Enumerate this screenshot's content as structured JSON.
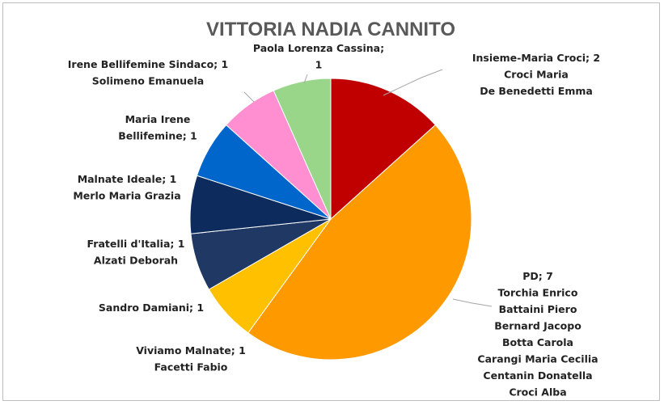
{
  "chart_data": {
    "type": "pie",
    "title": "VITTORIA NADIA CANNITO",
    "unit_note": "",
    "slices": [
      {
        "label": "Insieme-Maria Croci",
        "value": 2,
        "names": [
          "Croci Maria",
          "De Benedetti Emma"
        ],
        "color": "#c00000"
      },
      {
        "label": "PD",
        "value": 7,
        "names": [
          "Torchia Enrico",
          "Battaini Piero",
          "Bernard Jacopo",
          "Botta Carola",
          "Carangi Maria Cecilia",
          "Centanin Donatella",
          "Croci Alba"
        ],
        "color": "#ff9900"
      },
      {
        "label": "Viviamo Malnate",
        "value": 1,
        "names": [
          "Facetti Fabio"
        ],
        "color": "#ffc000"
      },
      {
        "label": "Sandro Damiani",
        "value": 1,
        "names": [],
        "color": "#1f3864"
      },
      {
        "label": "Fratelli d'Italia",
        "value": 1,
        "names": [
          "Alzati Deborah"
        ],
        "color": "#0d2b5c"
      },
      {
        "label": "Malnate Ideale",
        "value": 1,
        "names": [
          "Merlo Maria Grazia"
        ],
        "color": "#0066cc"
      },
      {
        "label": "Maria Irene Bellifemine",
        "value": 1,
        "names": [],
        "color": "#ff8fd0"
      },
      {
        "label": "Paola Lorenza Cassina",
        "value": 1,
        "names": [],
        "color": "#99d68a"
      }
    ],
    "label_texts": [
      [
        "Insieme-Maria Croci; 2",
        "Croci Maria",
        "De Benedetti Emma"
      ],
      [
        "PD; 7",
        "Torchia Enrico",
        "Battaini Piero",
        "Bernard Jacopo",
        "Botta Carola",
        "Carangi Maria Cecilia",
        "Centanin Donatella",
        "Croci Alba"
      ],
      [
        "Viviamo Malnate; 1",
        "Facetti Fabio"
      ],
      [
        "Sandro Damiani; 1"
      ],
      [
        "Fratelli d'Italia; 1",
        "Alzati Deborah"
      ],
      [
        "Malnate Ideale; 1",
        "Merlo Maria Grazia"
      ],
      [
        "Maria Irene",
        "Bellifemine; 1"
      ],
      [
        "Paola Lorenza Cassina;",
        "1"
      ]
    ],
    "extra_label": [
      "Irene Bellifemine Sindaco; 1",
      "Solimeno Emanuela"
    ],
    "legend": "none"
  }
}
